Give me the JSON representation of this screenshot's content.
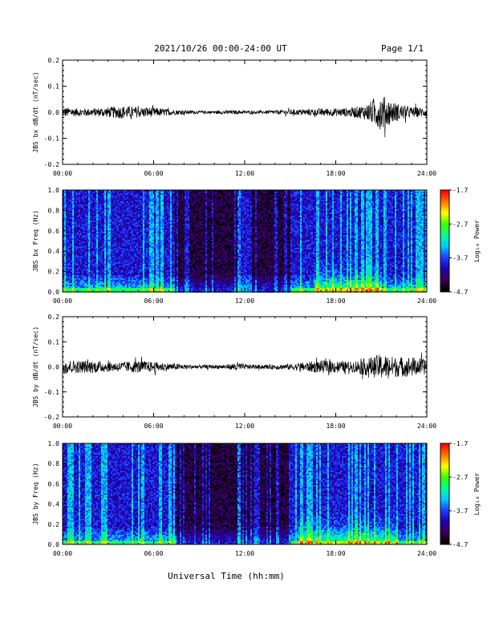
{
  "header": {
    "title": "2021/10/26  00:00-24:00 UT",
    "page": "Page 1/1"
  },
  "footer": {
    "xlabel": "Universal Time (hh:mm)"
  },
  "colors": {
    "trace": "#000000",
    "colormap": [
      "#000000",
      "#3a0050",
      "#1c00b4",
      "#1e3cff",
      "#00c8ff",
      "#00ff96",
      "#3cff00",
      "#ffff00",
      "#ff7800",
      "#ff0000"
    ]
  },
  "chart_data": [
    {
      "type": "line",
      "ylabel": "JBS bx dB/dt (nT/sec)",
      "xlim": [
        0,
        24
      ],
      "ylim": [
        -0.2,
        0.2
      ],
      "xticks": [
        "00:00",
        "06:00",
        "12:00",
        "18:00",
        "24:00"
      ],
      "yticks": [
        "0.2",
        "0.1",
        "0.0",
        "-0.1",
        "-0.2"
      ],
      "envelope": {
        "hours": [
          0,
          1,
          2,
          3,
          4,
          5,
          6,
          7,
          8,
          9,
          10,
          11,
          12,
          13,
          14,
          15,
          16,
          17,
          18,
          19,
          20,
          20.5,
          21,
          21.5,
          22,
          23,
          24
        ],
        "amplitude": [
          0.02,
          0.015,
          0.015,
          0.02,
          0.025,
          0.02,
          0.018,
          0.012,
          0.008,
          0.006,
          0.006,
          0.008,
          0.006,
          0.006,
          0.008,
          0.01,
          0.012,
          0.015,
          0.015,
          0.018,
          0.03,
          0.05,
          0.07,
          0.05,
          0.035,
          0.02,
          0.018
        ]
      }
    },
    {
      "type": "heatmap",
      "ylabel": "JBS bx Freq (Hz)",
      "xlim": [
        0,
        24
      ],
      "ylim": [
        0,
        1.0
      ],
      "xticks": [
        "00:00",
        "06:00",
        "12:00",
        "18:00",
        "24:00"
      ],
      "yticks": [
        "1.0",
        "0.8",
        "0.6",
        "0.4",
        "0.2",
        "0.0"
      ],
      "colorbar": {
        "label": "Log₁₀ Power",
        "range": [
          -4.7,
          -1.7
        ],
        "ticks": [
          "-1.7",
          "-2.7",
          "-3.7",
          "-4.7"
        ]
      },
      "quiet_interval": [
        7.3,
        15.0
      ],
      "enhancement": {
        "hours": [
          16.5,
          21
        ],
        "freq_max": 0.35
      }
    },
    {
      "type": "line",
      "ylabel": "JBS by dB/dt (nT/sec)",
      "xlim": [
        0,
        24
      ],
      "ylim": [
        -0.2,
        0.2
      ],
      "xticks": [
        "00:00",
        "06:00",
        "12:00",
        "18:00",
        "24:00"
      ],
      "yticks": [
        "0.2",
        "0.1",
        "0.0",
        "-0.1",
        "-0.2"
      ],
      "envelope": {
        "hours": [
          0,
          1,
          2,
          3,
          4,
          5,
          6,
          7,
          8,
          9,
          10,
          11,
          11.5,
          12,
          13,
          14,
          15,
          16,
          17,
          18,
          19,
          20,
          21,
          22,
          23,
          24
        ],
        "amplitude": [
          0.03,
          0.025,
          0.025,
          0.02,
          0.02,
          0.025,
          0.02,
          0.015,
          0.01,
          0.008,
          0.008,
          0.01,
          0.02,
          0.01,
          0.008,
          0.01,
          0.012,
          0.02,
          0.025,
          0.025,
          0.02,
          0.035,
          0.05,
          0.04,
          0.04,
          0.03
        ]
      }
    },
    {
      "type": "heatmap",
      "ylabel": "JBS by Freq (Hz)",
      "xlim": [
        0,
        24
      ],
      "ylim": [
        0,
        1.0
      ],
      "xticks": [
        "00:00",
        "06:00",
        "12:00",
        "18:00",
        "24:00"
      ],
      "yticks": [
        "1.0",
        "0.8",
        "0.6",
        "0.4",
        "0.2",
        "0.0"
      ],
      "colorbar": {
        "label": "Log₁₀ Power",
        "range": [
          -4.7,
          -1.7
        ],
        "ticks": [
          "-1.7",
          "-2.7",
          "-3.7",
          "-4.7"
        ]
      },
      "quiet_interval": [
        7.3,
        15.0
      ],
      "enhancement": {
        "hours": [
          15.5,
          22
        ],
        "freq_max": 0.35
      }
    }
  ]
}
